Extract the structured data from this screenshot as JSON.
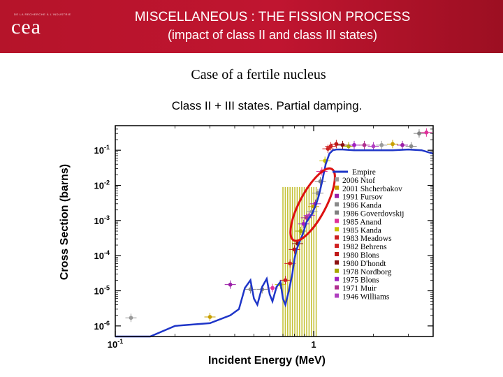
{
  "header": {
    "logo_tagline": "DE LA RECHERCHE À L'INDUSTRIE",
    "logo_text": "cea",
    "title_line1": "MISCELLANEOUS : THE FISSION PROCESS",
    "title_line2": "(impact of class II and class III states)",
    "banner_color": "#b5142a"
  },
  "subtitle": "Case of a fertile nucleus",
  "chart_data": {
    "type": "scatter",
    "title": "Class II + III states. Partial damping.",
    "xlabel": "Incident Energy (MeV)",
    "ylabel": "Cross Section (barns)",
    "xscale": "log",
    "yscale": "log",
    "xlim": [
      0.1,
      4
    ],
    "ylim": [
      5e-07,
      0.5
    ],
    "x_ticks": [
      {
        "value": 0.1,
        "base": "10",
        "exp": "-1"
      },
      {
        "value": 1,
        "label": "1"
      }
    ],
    "y_ticks": [
      {
        "value": 0.1,
        "base": "10",
        "exp": "-1"
      },
      {
        "value": 0.01,
        "base": "10",
        "exp": "-2"
      },
      {
        "value": 0.001,
        "base": "10",
        "exp": "-3"
      },
      {
        "value": 0.0001,
        "base": "10",
        "exp": "-4"
      },
      {
        "value": 1e-05,
        "base": "10",
        "exp": "-5"
      },
      {
        "value": 1e-06,
        "base": "10",
        "exp": "-6"
      }
    ],
    "legend_position": "right",
    "series": [
      {
        "name": "Empire",
        "kind": "line",
        "color": "#1e35c8",
        "x": [
          0.1,
          0.15,
          0.2,
          0.3,
          0.38,
          0.42,
          0.45,
          0.48,
          0.5,
          0.52,
          0.55,
          0.58,
          0.6,
          0.62,
          0.65,
          0.68,
          0.7,
          0.72,
          0.75,
          0.78,
          0.8,
          0.82,
          0.85,
          0.88,
          0.9,
          0.92,
          0.95,
          0.98,
          1.0,
          1.03,
          1.06,
          1.1,
          1.15,
          1.2,
          1.25,
          1.3,
          1.4,
          1.6,
          2.0,
          2.5,
          3.0,
          3.5,
          4.0
        ],
        "y": [
          4e-07,
          5e-07,
          1e-06,
          1.2e-06,
          2e-06,
          3e-06,
          1.2e-05,
          2e-05,
          6e-06,
          4e-06,
          1.3e-05,
          2.2e-05,
          8e-06,
          5e-06,
          1.3e-05,
          1.8e-05,
          6e-06,
          4e-06,
          1e-05,
          3e-05,
          8e-05,
          0.00015,
          0.00025,
          0.0004,
          0.0006,
          0.0009,
          0.0012,
          0.0015,
          0.002,
          0.003,
          0.005,
          0.012,
          0.04,
          0.08,
          0.1,
          0.105,
          0.105,
          0.1,
          0.1,
          0.1,
          0.105,
          0.1,
          0.08
        ]
      },
      {
        "name": "2006 Ntof",
        "color": "#9a9a9a"
      },
      {
        "name": "2001 Shcherbakov",
        "color": "#c9a000"
      },
      {
        "name": "1991 Fursov",
        "color": "#9b1fa8"
      },
      {
        "name": "1986 Kanda",
        "color": "#8a8a8a"
      },
      {
        "name": "1986 Goverdovskij",
        "color": "#808080"
      },
      {
        "name": "1985 Anand",
        "color": "#e0309a"
      },
      {
        "name": "1985 Kanda",
        "color": "#c8c200"
      },
      {
        "name": "1983 Meadows",
        "color": "#cc2020"
      },
      {
        "name": "1982 Behrens",
        "color": "#d02020"
      },
      {
        "name": "1980 Blons",
        "color": "#c01818"
      },
      {
        "name": "1980 D'hondt",
        "color": "#8b1010"
      },
      {
        "name": "1978 Nordborg",
        "color": "#a8a800"
      },
      {
        "name": "1975 Blons",
        "color": "#a020c0"
      },
      {
        "name": "1971 Muir",
        "color": "#b03090"
      },
      {
        "name": "1946 Williams",
        "color": "#b040c0"
      }
    ],
    "experimental_points": {
      "x": [
        0.12,
        0.3,
        0.38,
        0.48,
        0.55,
        0.62,
        0.68,
        0.72,
        0.76,
        0.8,
        0.83,
        0.86,
        0.89,
        0.92,
        0.95,
        0.98,
        1.0,
        1.02,
        1.05,
        1.08,
        1.1,
        1.14,
        1.18,
        1.22,
        1.3,
        1.4,
        1.5,
        1.6,
        1.8,
        2.0,
        2.2,
        2.5,
        2.8,
        3.1,
        3.4,
        3.7
      ],
      "y": [
        1.7e-06,
        1.8e-06,
        1.5e-05,
        1.1e-05,
        1.1e-05,
        1.2e-05,
        1.5e-05,
        2e-05,
        6e-05,
        0.00015,
        0.00022,
        0.0005,
        0.0008,
        0.0012,
        0.0014,
        0.0018,
        0.0025,
        0.003,
        0.006,
        0.013,
        0.025,
        0.05,
        0.11,
        0.13,
        0.15,
        0.14,
        0.13,
        0.14,
        0.14,
        0.13,
        0.14,
        0.15,
        0.14,
        0.13,
        0.3,
        0.32
      ]
    },
    "yellow_resonance_band": {
      "x_range": [
        0.7,
        1.05
      ],
      "y_top": 0.009,
      "y_bottom": 5e-07
    },
    "highlight": {
      "shape": "ellipse",
      "color": "#dd1111",
      "x_range": [
        0.85,
        1.15
      ],
      "y_range": [
        0.0002,
        0.04
      ]
    }
  }
}
